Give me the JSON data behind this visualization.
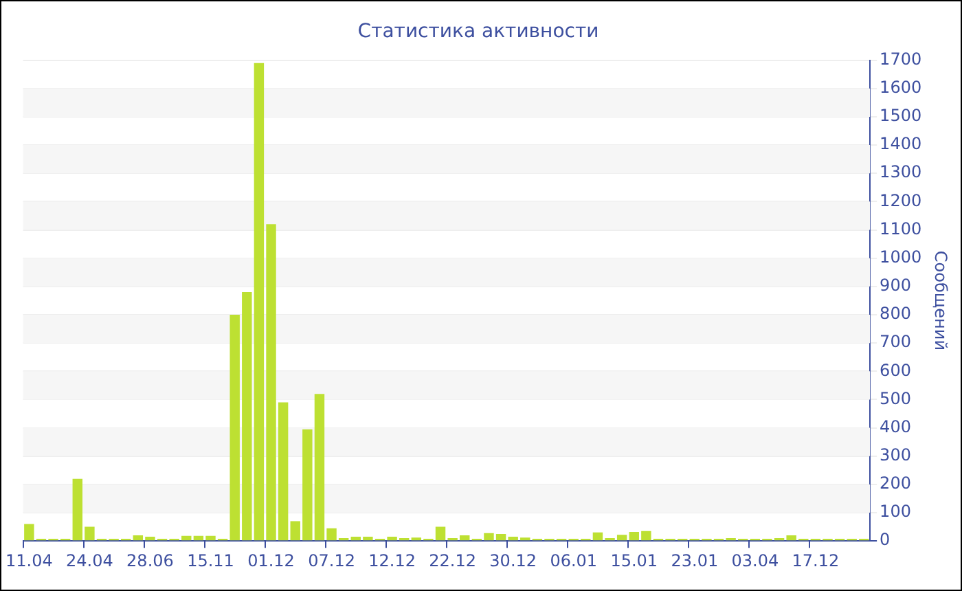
{
  "chart_data": {
    "type": "bar",
    "title": "Статистика активности",
    "ylabel": "Сообщений",
    "categories": [
      "11.04",
      null,
      null,
      null,
      null,
      "24.04",
      null,
      null,
      null,
      null,
      "28.06",
      null,
      null,
      null,
      null,
      "15.11",
      null,
      null,
      null,
      null,
      "01.12",
      null,
      null,
      null,
      null,
      "07.12",
      null,
      null,
      null,
      null,
      "12.12",
      null,
      null,
      null,
      null,
      "22.12",
      null,
      null,
      null,
      null,
      "30.12",
      null,
      null,
      null,
      null,
      "06.01",
      null,
      null,
      null,
      null,
      "15.01",
      null,
      null,
      null,
      null,
      "23.01",
      null,
      null,
      null,
      null,
      "03.04",
      null,
      null,
      null,
      null,
      "17.12",
      null,
      null,
      null,
      null
    ],
    "values": [
      60,
      8,
      8,
      8,
      220,
      50,
      8,
      8,
      8,
      20,
      15,
      8,
      8,
      18,
      18,
      18,
      8,
      800,
      880,
      1690,
      1120,
      490,
      70,
      395,
      520,
      45,
      10,
      15,
      15,
      8,
      15,
      10,
      12,
      8,
      50,
      10,
      20,
      8,
      28,
      25,
      15,
      12,
      8,
      8,
      8,
      8,
      8,
      30,
      10,
      22,
      32,
      35,
      8,
      8,
      8,
      8,
      8,
      8,
      10,
      8,
      8,
      8,
      10,
      20,
      8,
      8,
      8,
      8,
      8,
      8
    ],
    "color": "#bde032",
    "ylim": [
      0,
      1700
    ],
    "yticks": [
      0,
      100,
      200,
      300,
      400,
      500,
      600,
      700,
      800,
      900,
      1000,
      1100,
      1200,
      1300,
      1400,
      1500,
      1600,
      1700
    ],
    "grid": "y",
    "legend": false
  }
}
